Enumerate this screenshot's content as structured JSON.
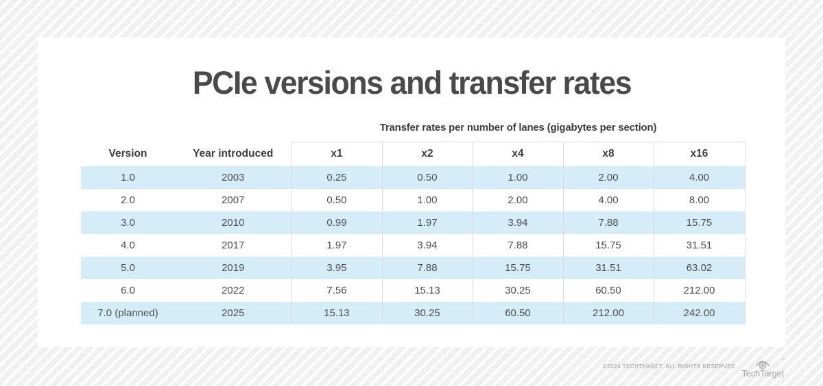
{
  "chart_data": {
    "type": "table",
    "title": "PCIe versions and transfer rates",
    "subtitle": "Transfer rates per number of lanes (gigabytes per section)",
    "columns": [
      "Version",
      "Year introduced",
      "x1",
      "x2",
      "x4",
      "x8",
      "x16"
    ],
    "rows": [
      [
        "1.0",
        "2003",
        "0.25",
        "0.50",
        "1.00",
        "2.00",
        "4.00"
      ],
      [
        "2.0",
        "2007",
        "0.50",
        "1.00",
        "2.00",
        "4.00",
        "8.00"
      ],
      [
        "3.0",
        "2010",
        "0.99",
        "1.97",
        "3.94",
        "7.88",
        "15.75"
      ],
      [
        "4.0",
        "2017",
        "1.97",
        "3.94",
        "7.88",
        "15.75",
        "31.51"
      ],
      [
        "5.0",
        "2019",
        "3.95",
        "7.88",
        "15.75",
        "31.51",
        "63.02"
      ],
      [
        "6.0",
        "2022",
        "7.56",
        "15.13",
        "30.25",
        "60.50",
        "212.00"
      ],
      [
        "7.0 (planned)",
        "2025",
        "15.13",
        "30.25",
        "60.50",
        "212.00",
        "242.00"
      ]
    ],
    "layout": {
      "row_striping": "odd rows highlighted",
      "lane_columns_bordered": true
    }
  },
  "footer": {
    "copyright": "©2024 TECHTARGET. ALL RIGHTS RESERVED",
    "brand": "TechTarget",
    "trademark": "™",
    "logo_icon": "eye-icon"
  },
  "colors": {
    "row_highlight": "#d5edf8",
    "table_border": "#dadada",
    "title_text": "#4a4a4a",
    "body_text": "#4d4d4d",
    "footer_text": "#9a9a9a",
    "stripe": "#f1f1f1"
  }
}
